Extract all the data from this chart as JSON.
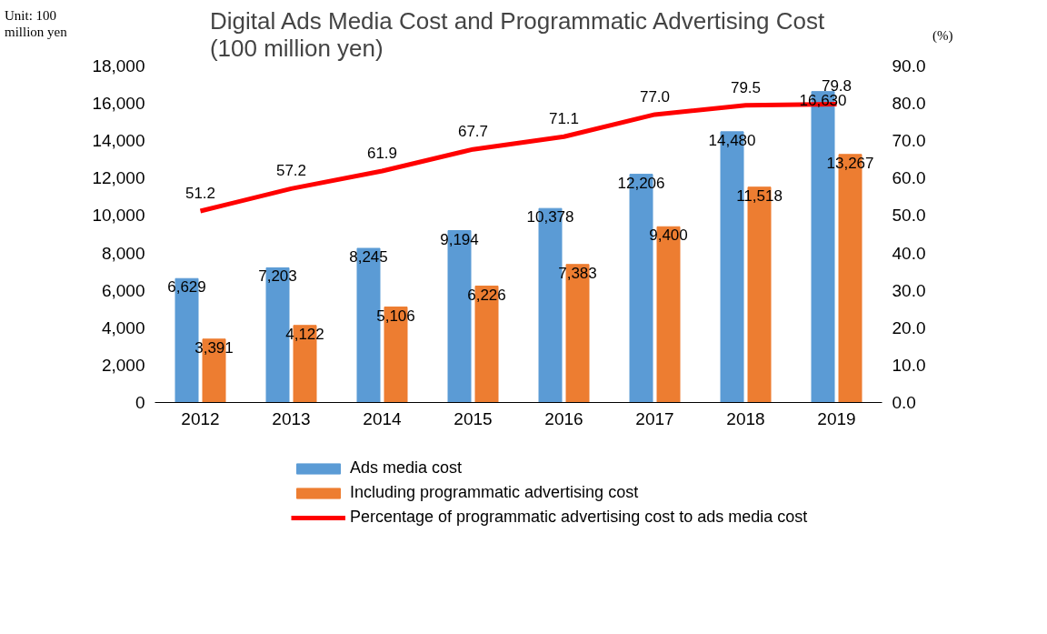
{
  "chart_data": {
    "type": "bar",
    "title": "Digital Ads Media Cost and Programmatic Advertising Cost (100 million yen)",
    "categories": [
      "2012",
      "2013",
      "2014",
      "2015",
      "2016",
      "2017",
      "2018",
      "2019"
    ],
    "series": [
      {
        "name": "Ads media cost",
        "color": "#5b9bd5",
        "values": [
          6629,
          7203,
          8245,
          9194,
          10378,
          12206,
          14480,
          16630
        ],
        "value_labels": [
          "6,629",
          "7,203",
          "8,245",
          "9,194",
          "10,378",
          "12,206",
          "14,480",
          "16,630"
        ]
      },
      {
        "name": "Including programmatic advertising cost",
        "color": "#ed7d31",
        "values": [
          3391,
          4122,
          5106,
          6226,
          7383,
          9400,
          11518,
          13267
        ],
        "value_labels": [
          "3,391",
          "4,122",
          "5,106",
          "6,226",
          "7,383",
          "9,400",
          "11,518",
          "13,267"
        ]
      },
      {
        "name": "Percentage of programmatic advertising cost to ads media cost",
        "type": "line",
        "axis": "y2",
        "color": "#ff0000",
        "values": [
          51.2,
          57.2,
          61.9,
          67.7,
          71.1,
          77.0,
          79.5,
          79.8
        ],
        "value_labels": [
          "51.2",
          "57.2",
          "61.9",
          "67.7",
          "71.1",
          "77.0",
          "79.5",
          "79.8"
        ]
      }
    ],
    "ylim": [
      0,
      18000
    ],
    "yticks": [
      {
        "value": 0,
        "label": "0"
      },
      {
        "value": 2000,
        "label": "2,000"
      },
      {
        "value": 4000,
        "label": "4,000"
      },
      {
        "value": 6000,
        "label": "6,000"
      },
      {
        "value": 8000,
        "label": "8,000"
      },
      {
        "value": 10000,
        "label": "10,000"
      },
      {
        "value": 12000,
        "label": "12,000"
      },
      {
        "value": 14000,
        "label": "14,000"
      },
      {
        "value": 16000,
        "label": "16,000"
      },
      {
        "value": 18000,
        "label": "18,000"
      }
    ],
    "y2lim": [
      0,
      90
    ],
    "y2ticks": [
      {
        "value": 0,
        "label": "0.0"
      },
      {
        "value": 10,
        "label": "10.0"
      },
      {
        "value": 20,
        "label": "20.0"
      },
      {
        "value": 30,
        "label": "30.0"
      },
      {
        "value": 40,
        "label": "40.0"
      },
      {
        "value": 50,
        "label": "50.0"
      },
      {
        "value": 60,
        "label": "60.0"
      },
      {
        "value": 70,
        "label": "70.0"
      },
      {
        "value": 80,
        "label": "80.0"
      },
      {
        "value": 90,
        "label": "90.0"
      }
    ],
    "grid": false,
    "legend": "bottom",
    "annotations": [
      "Unit: 100 million yen",
      "(%)"
    ]
  }
}
